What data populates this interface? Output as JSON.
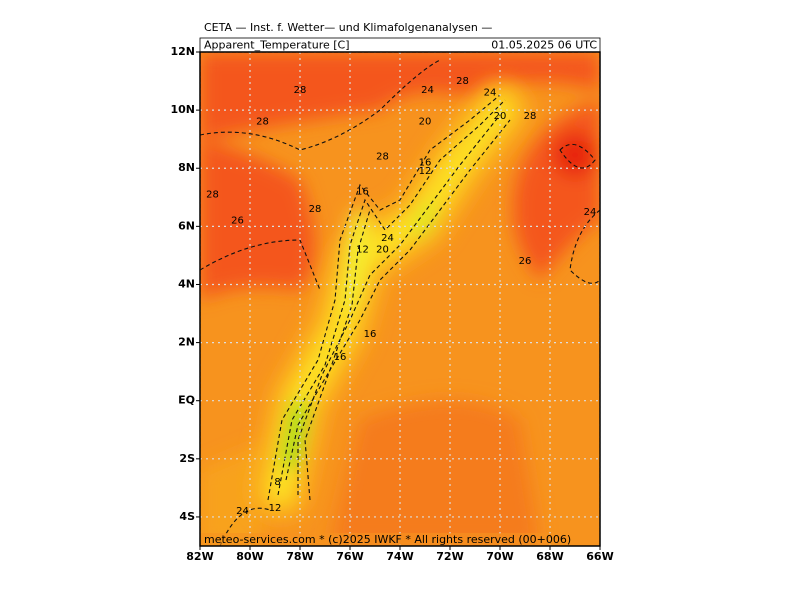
{
  "header": {
    "title": "CETA — Inst. f. Wetter— und Klimafolgenanalysen —",
    "variable": "Apparent_Temperature [C]",
    "valid_time": "01.05.2025 06 UTC"
  },
  "map": {
    "lon_range": [
      -82,
      -66
    ],
    "lat_range": [
      -5,
      12
    ],
    "lon_ticks": [
      {
        "value": -82,
        "label": "82W"
      },
      {
        "value": -80,
        "label": "80W"
      },
      {
        "value": -78,
        "label": "78W"
      },
      {
        "value": -76,
        "label": "76W"
      },
      {
        "value": -74,
        "label": "74W"
      },
      {
        "value": -72,
        "label": "72W"
      },
      {
        "value": -70,
        "label": "70W"
      },
      {
        "value": -68,
        "label": "68W"
      },
      {
        "value": -66,
        "label": "66W"
      }
    ],
    "lat_ticks": [
      {
        "value": 12,
        "label": "12N"
      },
      {
        "value": 10,
        "label": "10N"
      },
      {
        "value": 8,
        "label": "8N"
      },
      {
        "value": 6,
        "label": "6N"
      },
      {
        "value": 4,
        "label": "4N"
      },
      {
        "value": 2,
        "label": "2N"
      },
      {
        "value": 0,
        "label": "EQ"
      },
      {
        "value": -2,
        "label": "2S"
      },
      {
        "value": -4,
        "label": "4S"
      }
    ],
    "contour_labels": [
      {
        "label": "28",
        "lon": -78.0,
        "lat": 10.7
      },
      {
        "label": "28",
        "lon": -79.5,
        "lat": 9.6
      },
      {
        "label": "28",
        "lon": -81.5,
        "lat": 7.1
      },
      {
        "label": "26",
        "lon": -80.5,
        "lat": 6.2
      },
      {
        "label": "28",
        "lon": -77.4,
        "lat": 6.6
      },
      {
        "label": "28",
        "lon": -74.7,
        "lat": 8.4
      },
      {
        "label": "24",
        "lon": -72.9,
        "lat": 10.7
      },
      {
        "label": "28",
        "lon": -71.5,
        "lat": 11.0
      },
      {
        "label": "24",
        "lon": -70.4,
        "lat": 10.6
      },
      {
        "label": "20",
        "lon": -73.0,
        "lat": 9.6
      },
      {
        "label": "20",
        "lon": -70.0,
        "lat": 9.8
      },
      {
        "label": "28",
        "lon": -68.8,
        "lat": 9.8
      },
      {
        "label": "16",
        "lon": -73.0,
        "lat": 8.2
      },
      {
        "label": "12",
        "lon": -73.0,
        "lat": 7.9
      },
      {
        "label": "16",
        "lon": -75.5,
        "lat": 7.2
      },
      {
        "label": "24",
        "lon": -66.4,
        "lat": 6.5
      },
      {
        "label": "12",
        "lon": -75.5,
        "lat": 5.2
      },
      {
        "label": "24",
        "lon": -74.5,
        "lat": 5.6
      },
      {
        "label": "20",
        "lon": -74.7,
        "lat": 5.2
      },
      {
        "label": "26",
        "lon": -69.0,
        "lat": 4.8
      },
      {
        "label": "16",
        "lon": -75.2,
        "lat": 2.3
      },
      {
        "label": "16",
        "lon": -76.4,
        "lat": 1.5
      },
      {
        "label": "8",
        "lon": -78.9,
        "lat": -2.8
      },
      {
        "label": "12",
        "lon": -79.0,
        "lat": -3.7
      },
      {
        "label": "24",
        "lon": -80.3,
        "lat": -3.8
      }
    ]
  },
  "footer": "meteo-services.com * (c)2025 IWKF * All rights reserved (00+006)"
}
